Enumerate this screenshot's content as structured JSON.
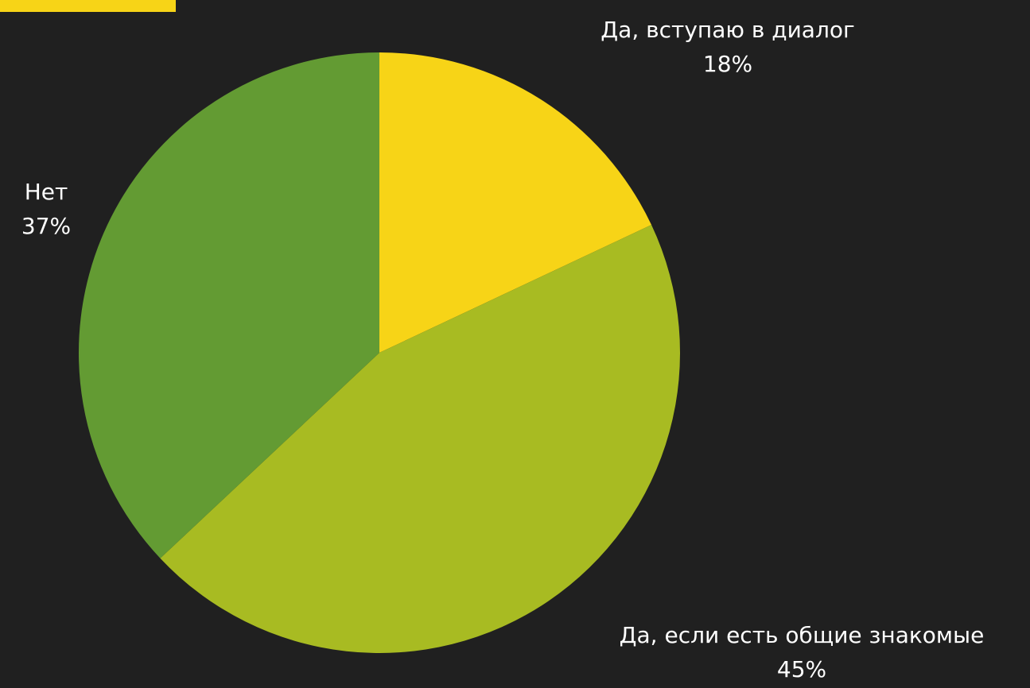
{
  "colors": {
    "background": "#202020",
    "accent": "#f7d417",
    "label_text": "#ffffff"
  },
  "chart_data": {
    "type": "pie",
    "title": "",
    "slices": [
      {
        "label": "Да, вступаю в диалог",
        "value": 18,
        "percent_label": "18%",
        "color": "#f7d417"
      },
      {
        "label": "Да, если есть общие знакомые",
        "value": 45,
        "percent_label": "45%",
        "color": "#a8bb22"
      },
      {
        "label": "Нет",
        "value": 37,
        "percent_label": "37%",
        "color": "#639b33"
      }
    ],
    "start_angle_deg": 0,
    "direction": "clockwise",
    "legend": "none",
    "data_labels": "outside"
  }
}
